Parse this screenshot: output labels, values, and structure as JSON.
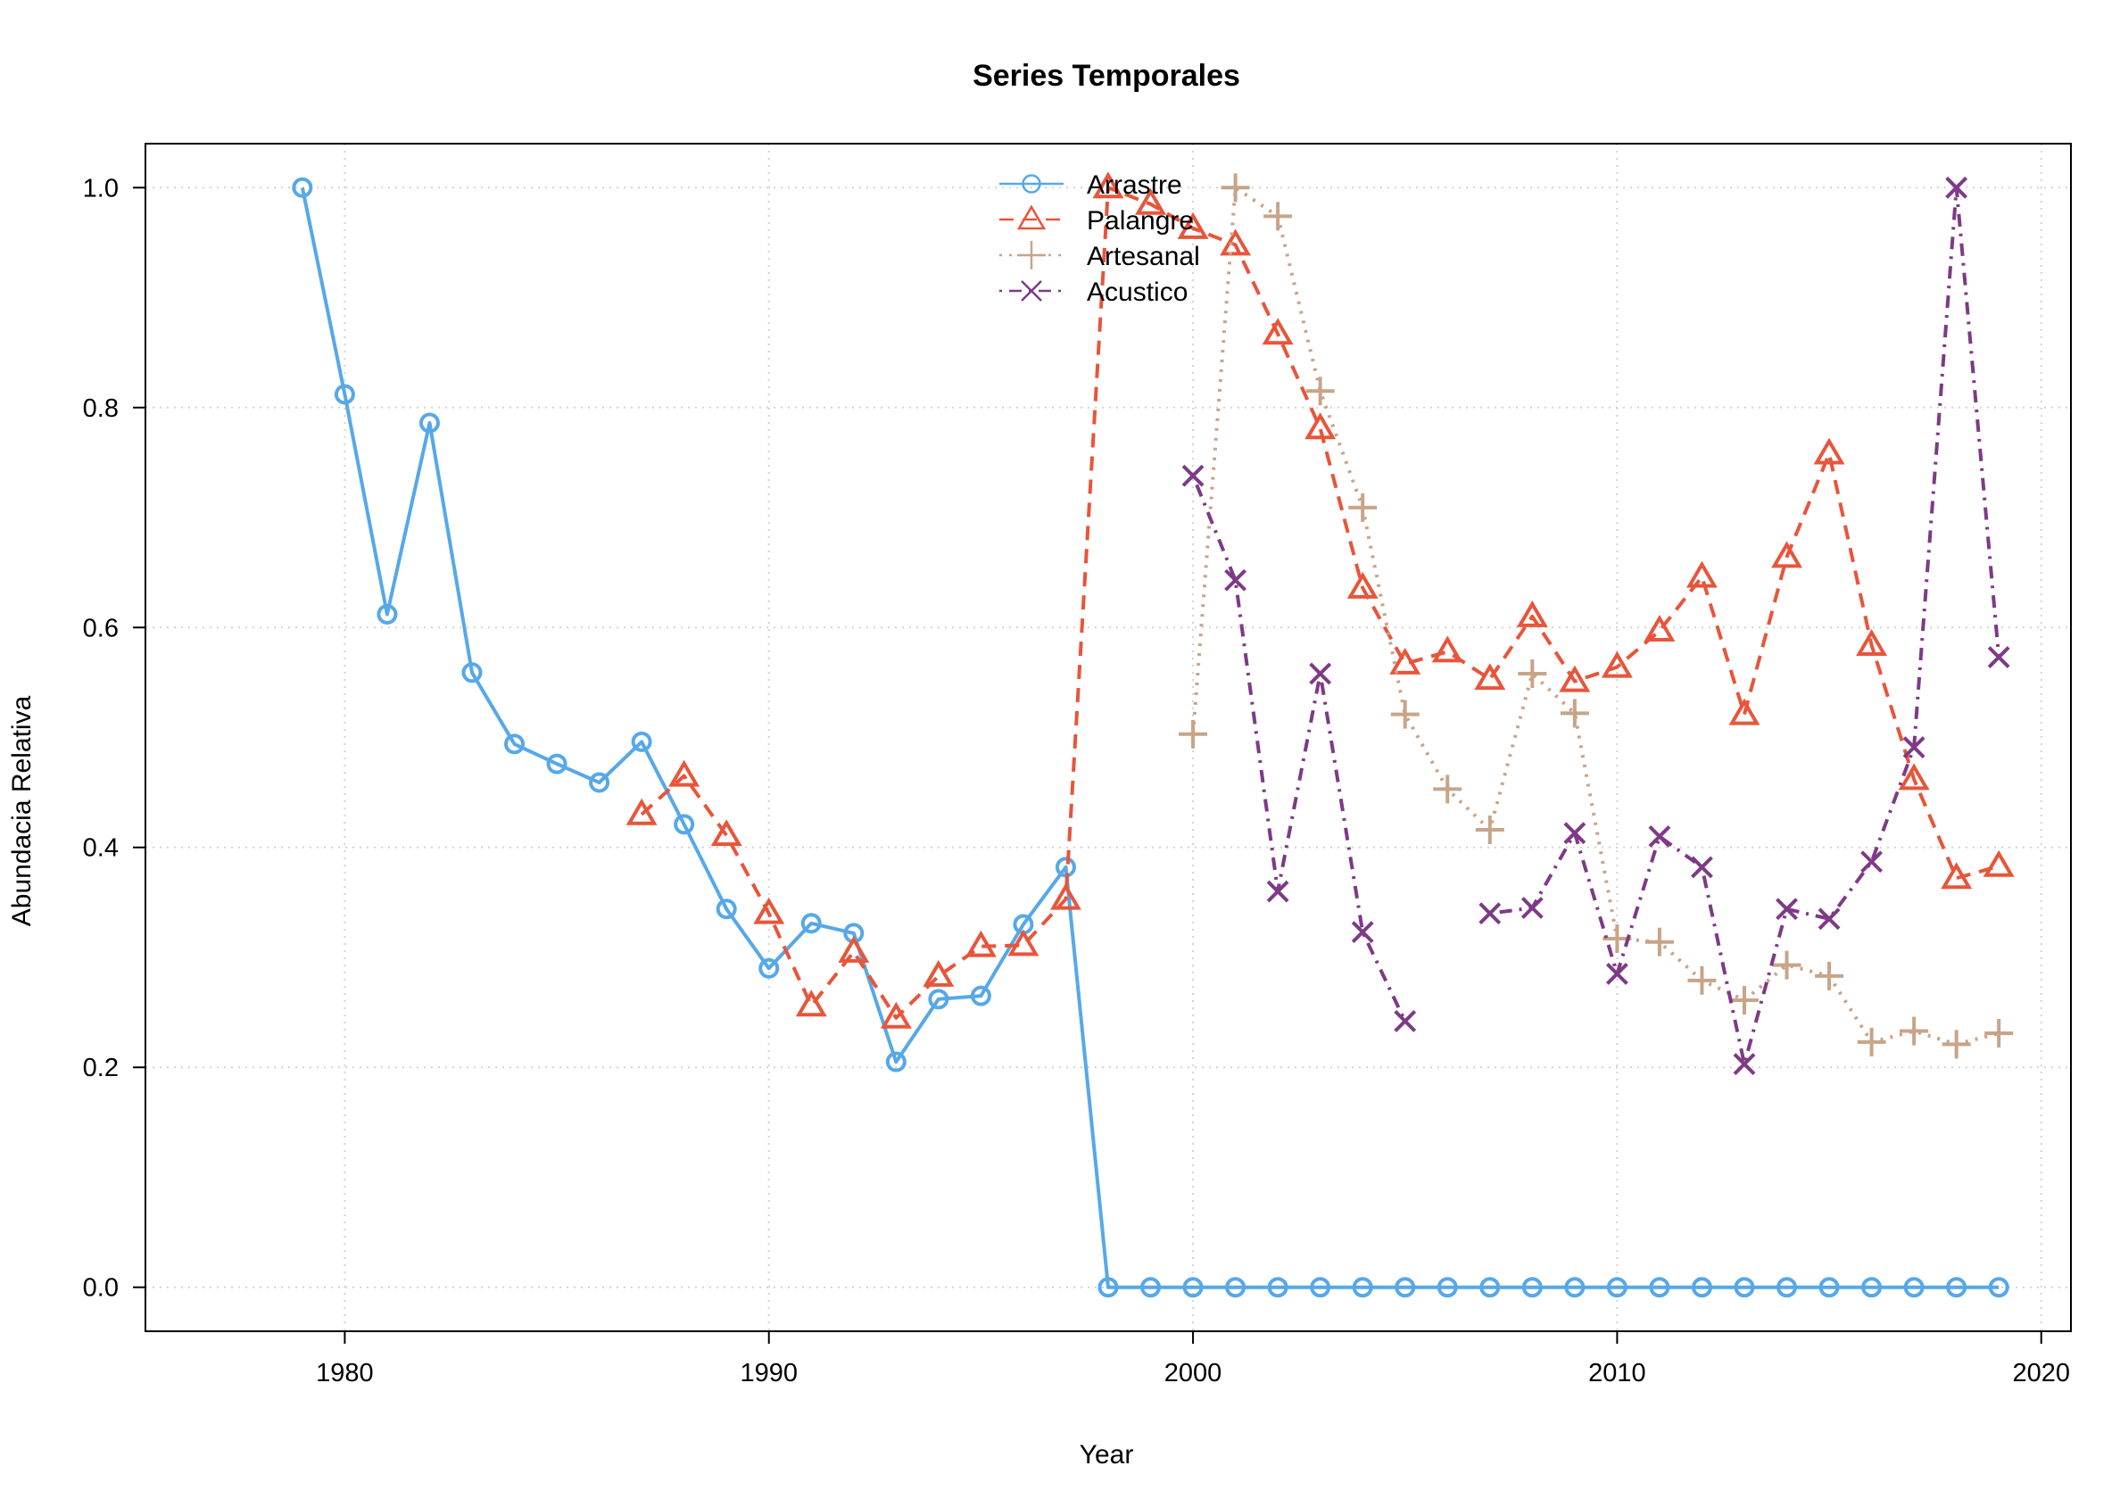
{
  "chart_data": {
    "type": "line",
    "title": "Series Temporales",
    "xlabel": "Year",
    "ylabel": "Abundacia Relativa",
    "xlim": [
      1975.3,
      2020.7
    ],
    "ylim": [
      -0.04,
      1.04
    ],
    "x_ticks": [
      1980,
      1990,
      2000,
      2010,
      2020
    ],
    "y_ticks": [
      0.0,
      0.2,
      0.4,
      0.6,
      0.8,
      1.0
    ],
    "x_tick_labels": [
      "1980",
      "1990",
      "2000",
      "2010",
      "2020"
    ],
    "y_tick_labels": [
      "0.0",
      "0.2",
      "0.4",
      "0.6",
      "0.8",
      "1.0"
    ],
    "grid": true,
    "legend_position": "top-center",
    "series": [
      {
        "name": "Arrastre",
        "color": "#56a8e8",
        "line_style": "solid",
        "marker": "circle",
        "x": [
          1979,
          1980,
          1981,
          1982,
          1983,
          1984,
          1985,
          1986,
          1987,
          1988,
          1989,
          1990,
          1991,
          1992,
          1993,
          1994,
          1995,
          1996,
          1997,
          1998,
          1999,
          2000,
          2001,
          2002,
          2003,
          2004,
          2005,
          2006,
          2007,
          2008,
          2009,
          2010,
          2011,
          2012,
          2013,
          2014,
          2015,
          2016,
          2017,
          2018,
          2019
        ],
        "y": [
          1.0,
          0.812,
          0.612,
          0.786,
          0.559,
          0.494,
          0.476,
          0.459,
          0.496,
          0.421,
          0.344,
          0.29,
          0.331,
          0.322,
          0.205,
          0.262,
          0.265,
          0.33,
          0.382,
          0.0,
          0.0,
          0.0,
          0.0,
          0.0,
          0.0,
          0.0,
          0.0,
          0.0,
          0.0,
          0.0,
          0.0,
          0.0,
          0.0,
          0.0,
          0.0,
          0.0,
          0.0,
          0.0,
          0.0,
          0.0,
          0.0
        ]
      },
      {
        "name": "Palangre",
        "color": "#e8553a",
        "line_style": "dashed",
        "marker": "triangle",
        "x": [
          1987,
          1988,
          1989,
          1990,
          1991,
          1992,
          1993,
          1994,
          1995,
          1996,
          1997,
          1998,
          1999,
          2000,
          2001,
          2002,
          2003,
          2004,
          2005,
          2006,
          2007,
          2008,
          2009,
          2010,
          2011,
          2012,
          2013,
          2014,
          2015,
          2016,
          2017,
          2018,
          2019
        ],
        "y": [
          0.43,
          0.465,
          0.411,
          0.34,
          0.256,
          0.305,
          0.245,
          0.283,
          0.31,
          0.311,
          0.353,
          1.0,
          0.985,
          0.963,
          0.948,
          0.867,
          0.781,
          0.636,
          0.567,
          0.578,
          0.553,
          0.61,
          0.551,
          0.564,
          0.597,
          0.646,
          0.521,
          0.664,
          0.758,
          0.584,
          0.462,
          0.372,
          0.383
        ]
      },
      {
        "name": "Artesanal",
        "color": "#c8a488",
        "line_style": "dotted",
        "marker": "plus",
        "x": [
          2000,
          2001,
          2002,
          2003,
          2004,
          2005,
          2006,
          2007,
          2008,
          2009,
          2010,
          2011,
          2012,
          2013,
          2014,
          2015,
          2016,
          2017,
          2018,
          2019
        ],
        "y": [
          0.503,
          1.0,
          0.974,
          0.815,
          0.709,
          0.521,
          0.453,
          0.416,
          0.558,
          0.522,
          0.317,
          0.314,
          0.279,
          0.261,
          0.293,
          0.283,
          0.223,
          0.233,
          0.221,
          0.231
        ]
      },
      {
        "name": "Acustico",
        "color": "#7d3a86",
        "line_style": "dotdash",
        "marker": "cross",
        "x": [
          2000,
          2001,
          2002,
          2003,
          2004,
          2005,
          2007,
          2008,
          2009,
          2010,
          2011,
          2012,
          2013,
          2014,
          2015,
          2016,
          2017,
          2018,
          2019
        ],
        "y": [
          0.738,
          0.643,
          0.36,
          0.558,
          0.323,
          0.242,
          0.34,
          0.345,
          0.413,
          0.285,
          0.41,
          0.382,
          0.203,
          0.344,
          0.335,
          0.387,
          0.491,
          1.0,
          0.573
        ],
        "segment_breaks_after_x": [
          2005
        ]
      }
    ]
  }
}
